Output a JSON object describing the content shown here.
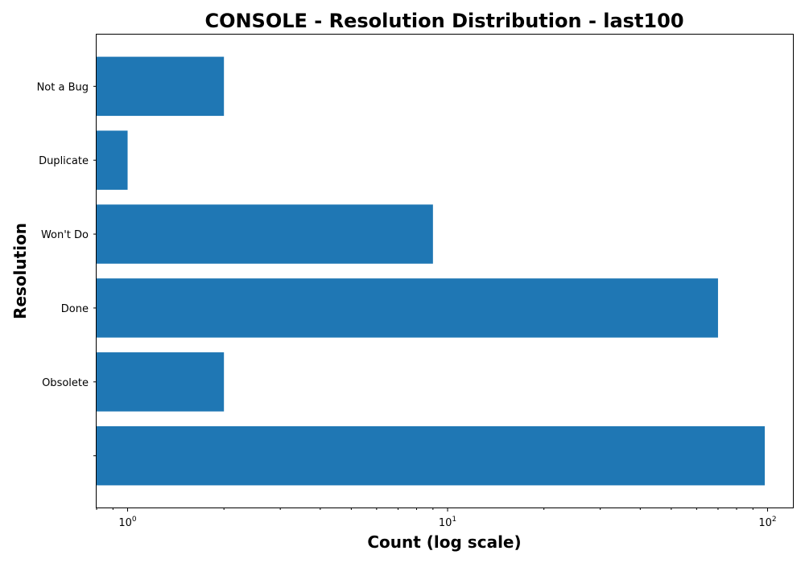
{
  "chart_data": {
    "type": "bar",
    "orientation": "horizontal",
    "title": "CONSOLE - Resolution Distribution - last100",
    "xlabel": "Count (log scale)",
    "ylabel": "Resolution",
    "x_scale": "log",
    "xlim": [
      0.8,
      120
    ],
    "x_ticks": [
      1,
      10,
      100
    ],
    "x_tick_labels": [
      {
        "base": "10",
        "exp": "0"
      },
      {
        "base": "10",
        "exp": "1"
      },
      {
        "base": "10",
        "exp": "2"
      }
    ],
    "categories": [
      "Not a Bug",
      "Duplicate",
      "Won't Do",
      "Done",
      "Obsolete",
      ""
    ],
    "values": [
      2,
      1,
      9,
      70,
      2,
      98
    ],
    "bar_color": "#1f77b4",
    "grid": false,
    "legend": "none"
  }
}
